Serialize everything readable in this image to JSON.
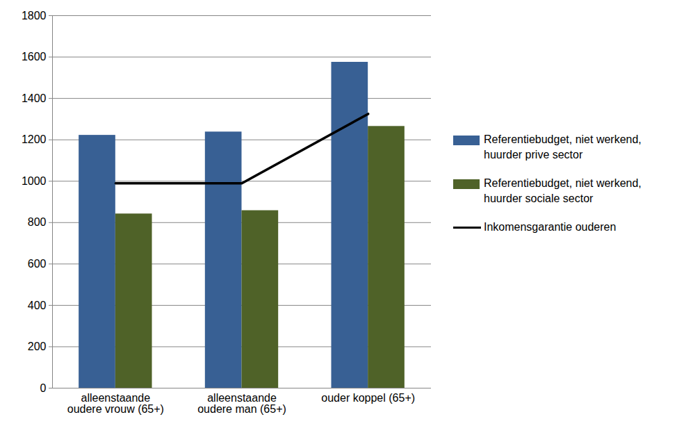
{
  "chart_data": {
    "type": "bar",
    "categories": [
      "alleenstaande oudere vrouw (65+)",
      "alleenstaande oudere man (65+)",
      "ouder koppel (65+)"
    ],
    "series": [
      {
        "name": "Referentiebudget, niet werkend, huurder prive sector",
        "color": "#386094",
        "values": [
          1222,
          1238,
          1575
        ]
      },
      {
        "name": "Referentiebudget, niet werkend, huurder sociale sector",
        "color": "#4F6228",
        "values": [
          842,
          858,
          1265
        ]
      },
      {
        "name": "Inkomensgarantie ouderen",
        "type": "line",
        "color": "#000000",
        "values": [
          990,
          990,
          1325
        ]
      }
    ],
    "ylim": [
      0,
      1800
    ],
    "yticks": [
      0,
      200,
      400,
      600,
      800,
      1000,
      1200,
      1400,
      1600,
      1800
    ],
    "grid": true,
    "legend": "right"
  }
}
